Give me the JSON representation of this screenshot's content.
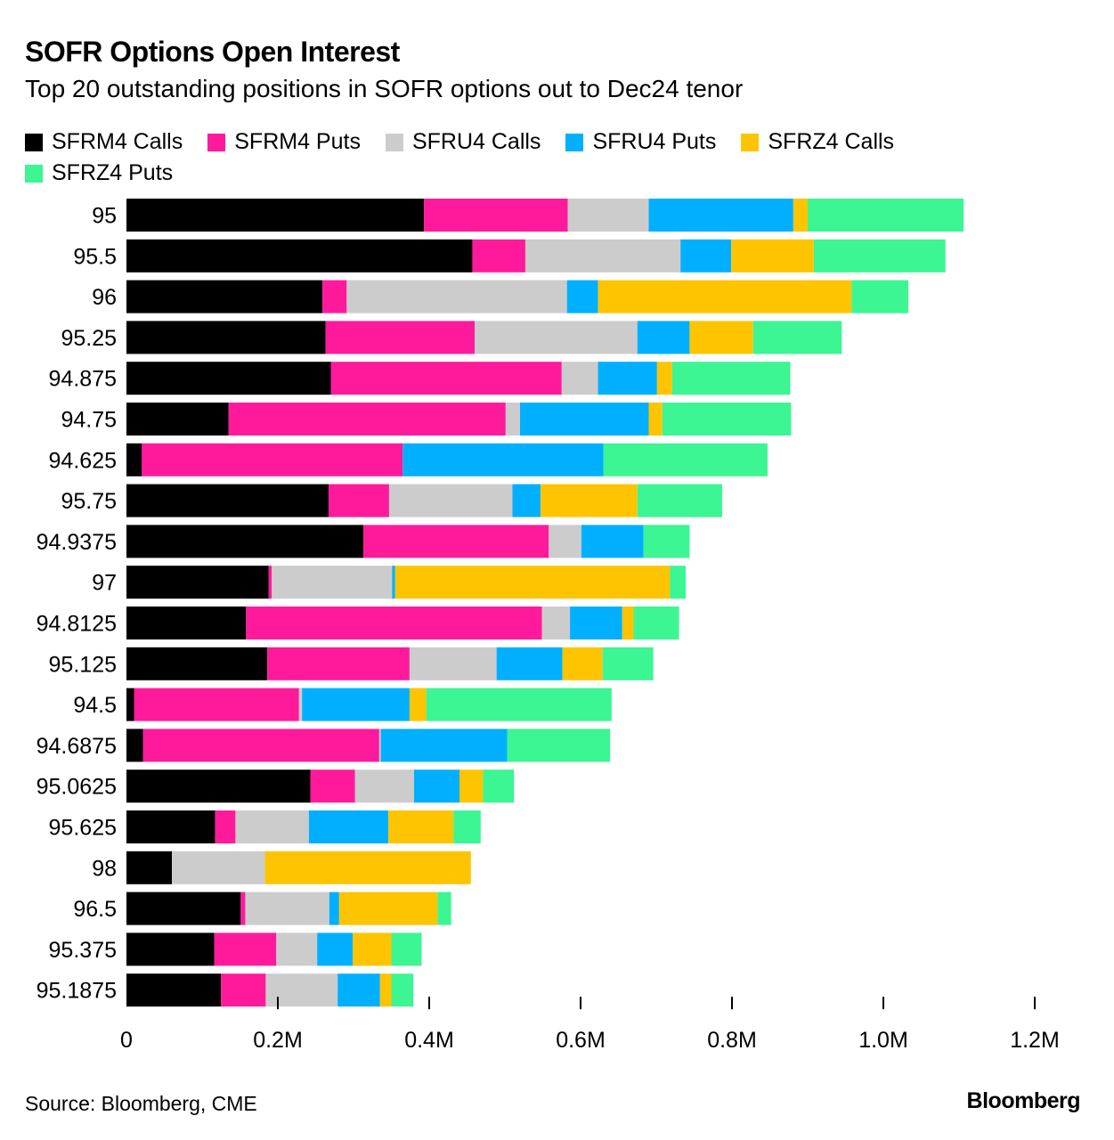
{
  "title": "SOFR Options Open Interest",
  "subtitle": "Top 20 outstanding positions in SOFR options out to Dec24 tenor",
  "source": "Source: Bloomberg, CME",
  "brand": "Bloomberg",
  "legend": [
    {
      "label": "SFRM4 Calls",
      "color": "#000000"
    },
    {
      "label": "SFRM4 Puts",
      "color": "#ff1a9c"
    },
    {
      "label": "SFRU4 Calls",
      "color": "#cccccc"
    },
    {
      "label": "SFRU4 Puts",
      "color": "#00b0ff"
    },
    {
      "label": "SFRZ4 Calls",
      "color": "#ffc400"
    },
    {
      "label": "SFRZ4 Puts",
      "color": "#3cf593"
    }
  ],
  "chart_data": {
    "type": "bar",
    "orientation": "horizontal",
    "stacked": true,
    "title": "SOFR Options Open Interest",
    "xlabel": "",
    "ylabel": "",
    "xlim": [
      0,
      1200000
    ],
    "x_ticks": [
      0,
      200000,
      400000,
      600000,
      800000,
      1000000,
      1200000
    ],
    "x_tick_labels": [
      "0",
      "0.2M",
      "0.4M",
      "0.6M",
      "0.8M",
      "1.0M",
      "1.2M"
    ],
    "categories": [
      "95",
      "95.5",
      "96",
      "95.25",
      "94.875",
      "94.75",
      "94.625",
      "95.75",
      "94.9375",
      "97",
      "94.8125",
      "95.125",
      "94.5",
      "94.6875",
      "95.0625",
      "95.625",
      "98",
      "96.5",
      "95.375",
      "95.1875"
    ],
    "series": [
      {
        "name": "SFRM4 Calls",
        "color": "#000000",
        "values": [
          393000,
          457000,
          259000,
          263000,
          270000,
          135000,
          20000,
          267000,
          313000,
          188000,
          158000,
          186000,
          10000,
          22000,
          243000,
          117000,
          60000,
          151000,
          116000,
          125000
        ]
      },
      {
        "name": "SFRM4 Puts",
        "color": "#ff1a9c",
        "values": [
          190000,
          70000,
          32000,
          197000,
          305000,
          366000,
          345000,
          80000,
          245000,
          4000,
          391000,
          188000,
          218000,
          312000,
          59000,
          27000,
          0,
          6000,
          82000,
          59000
        ]
      },
      {
        "name": "SFRU4 Calls",
        "color": "#cccccc",
        "values": [
          107000,
          205000,
          291000,
          215000,
          48000,
          19000,
          0,
          163000,
          43000,
          159000,
          37000,
          115000,
          4000,
          2000,
          78000,
          97000,
          123000,
          111000,
          54000,
          95000
        ]
      },
      {
        "name": "SFRU4 Puts",
        "color": "#00b0ff",
        "values": [
          191000,
          67000,
          41000,
          69000,
          78000,
          170000,
          265000,
          37000,
          82000,
          4000,
          69000,
          87000,
          142000,
          167000,
          60000,
          105000,
          0,
          13000,
          47000,
          56000
        ]
      },
      {
        "name": "SFRZ4 Calls",
        "color": "#ffc400",
        "values": [
          19000,
          109000,
          335000,
          84000,
          20000,
          18000,
          0,
          128000,
          0,
          363000,
          15000,
          53000,
          22000,
          0,
          31000,
          86000,
          272000,
          130000,
          51000,
          15000
        ]
      },
      {
        "name": "SFRZ4 Puts",
        "color": "#3cf593",
        "values": [
          206000,
          174000,
          75000,
          117000,
          156000,
          170000,
          217000,
          112000,
          61000,
          21000,
          60000,
          67000,
          245000,
          136000,
          41000,
          36000,
          0,
          18000,
          40000,
          29000
        ]
      }
    ]
  }
}
